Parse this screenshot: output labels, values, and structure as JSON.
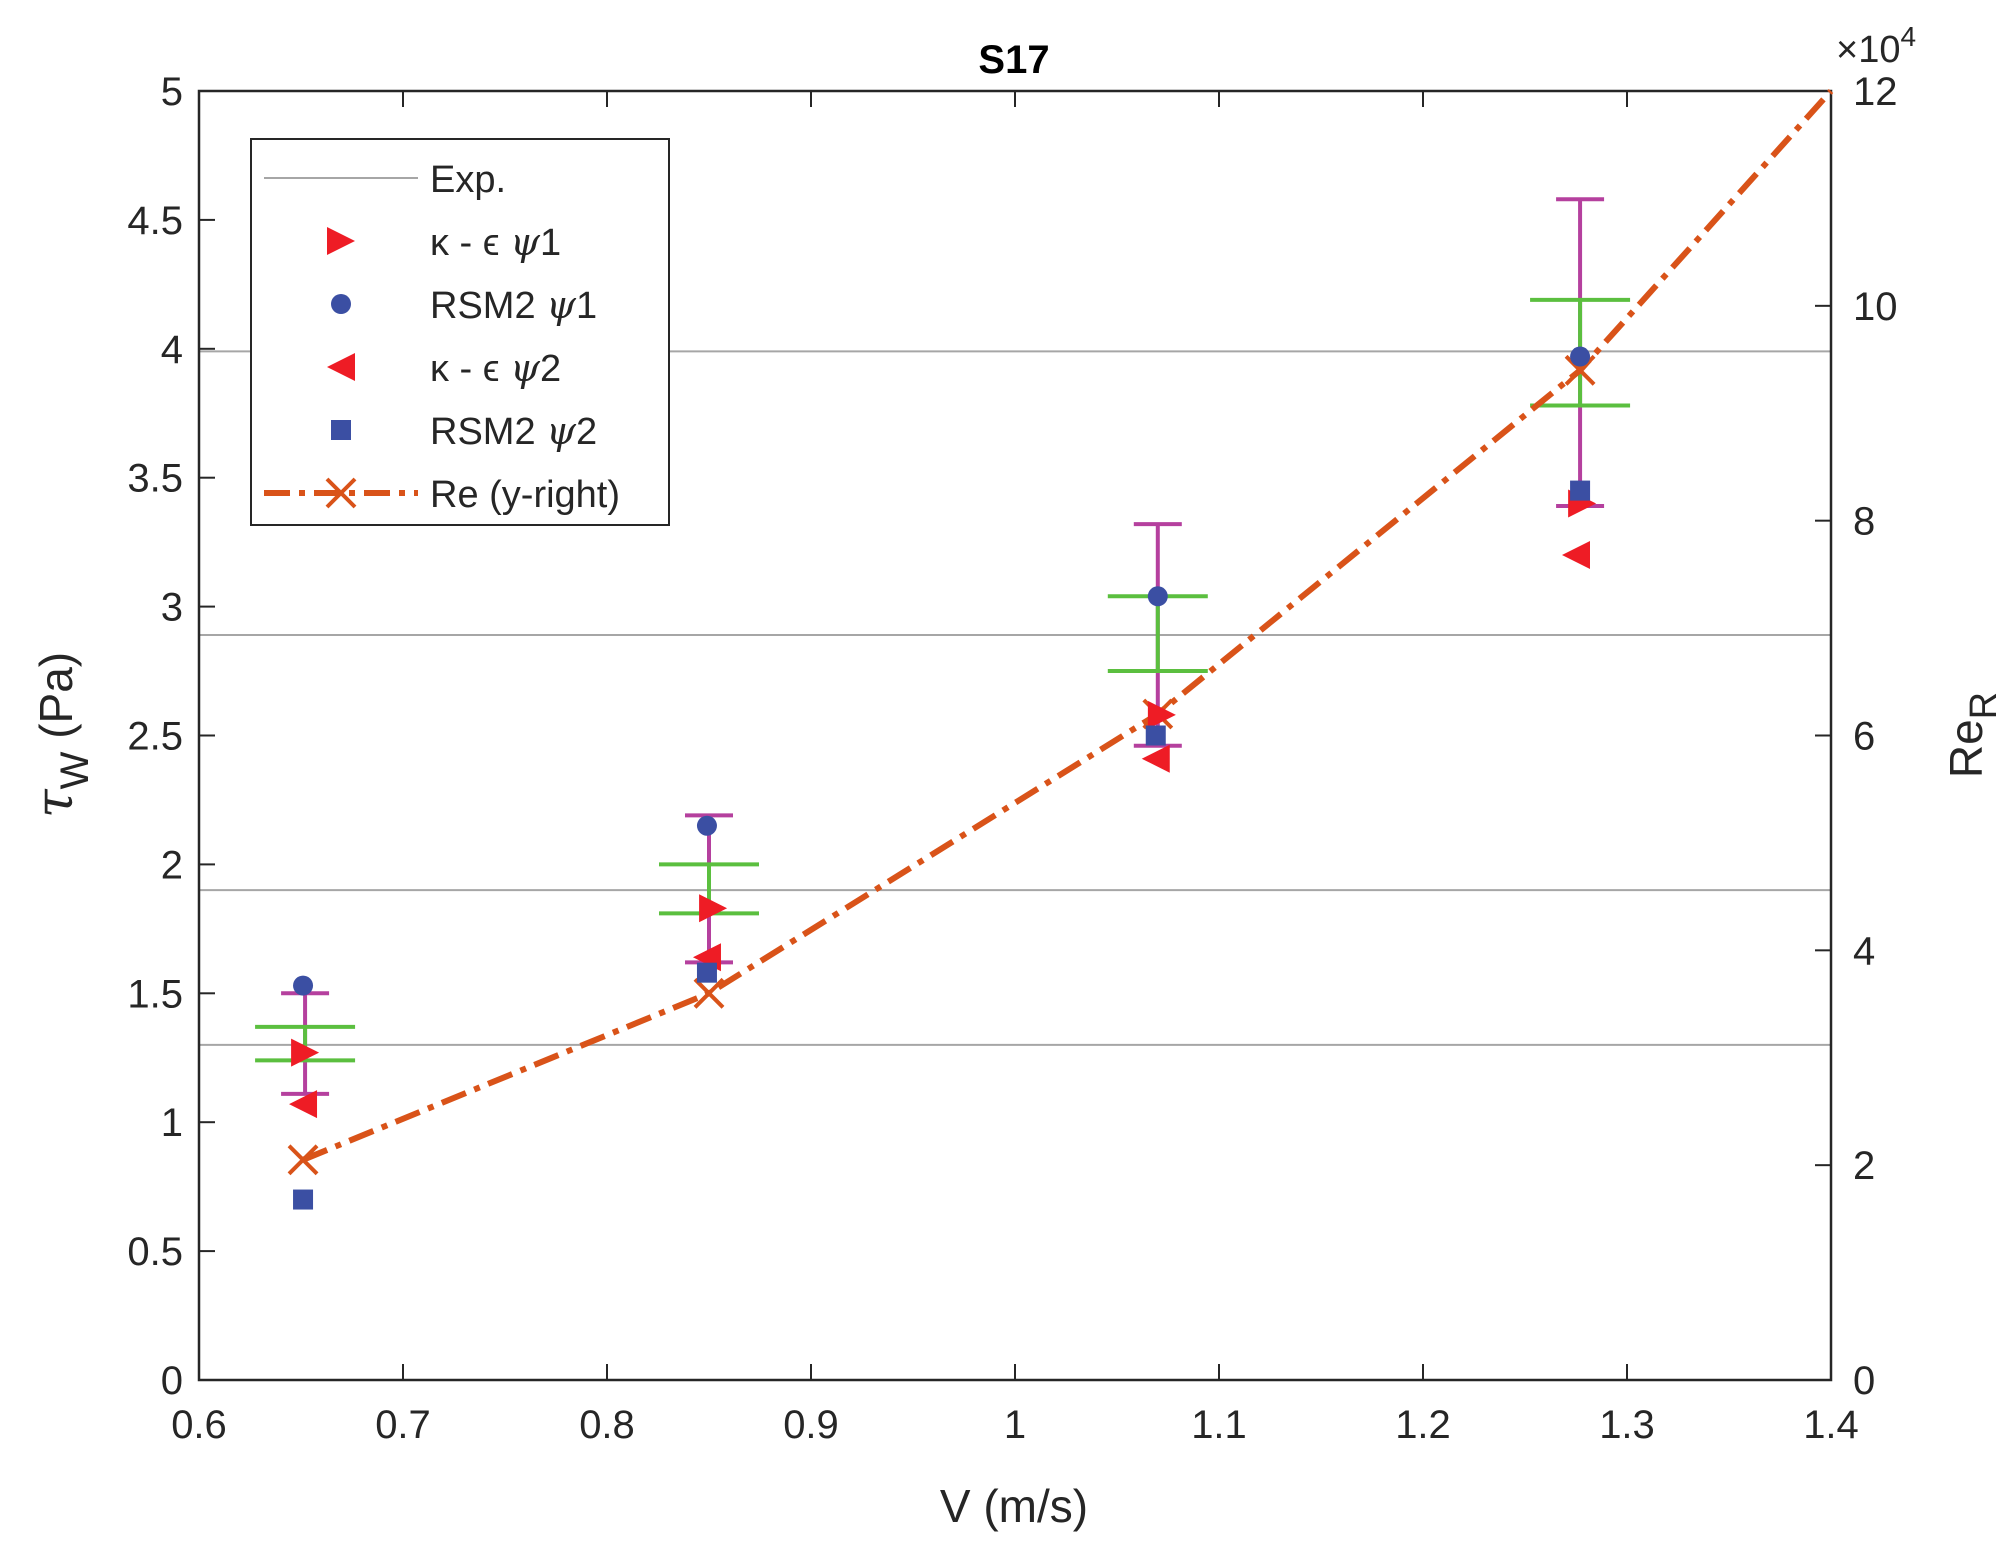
{
  "chart_data": {
    "type": "scatter",
    "title": "S17",
    "xlabel": "V  (m/s)",
    "ylabel_symbol": "τ",
    "ylabel_sub": "W",
    "ylabel_unit": " (Pa)",
    "y2label": "Re",
    "y2label_sub": "R",
    "y2_exponent_base": "×10",
    "y2_exponent_power": "4",
    "xlim": [
      0.6,
      1.4
    ],
    "ylim": [
      0,
      5
    ],
    "y2lim": [
      0,
      12
    ],
    "xticks": [
      0.6,
      0.7,
      0.8,
      0.9,
      1.0,
      1.1,
      1.2,
      1.3,
      1.4
    ],
    "xtick_labels": [
      "0.6",
      "0.7",
      "0.8",
      "0.9",
      "1",
      "1.1",
      "1.2",
      "1.3",
      "1.4"
    ],
    "yticks": [
      0,
      0.5,
      1,
      1.5,
      2,
      2.5,
      3,
      3.5,
      4,
      4.5,
      5
    ],
    "ytick_labels": [
      "0",
      "0.5",
      "1",
      "1.5",
      "2",
      "2.5",
      "3",
      "3.5",
      "4",
      "4.5",
      "5"
    ],
    "y2ticks": [
      0,
      2,
      4,
      6,
      8,
      10,
      12
    ],
    "y2tick_labels": [
      "0",
      "2",
      "4",
      "6",
      "8",
      "10",
      "12"
    ],
    "legend_position": "top-left",
    "series": [
      {
        "name": "Exp.",
        "kind": "hline",
        "values": [
          1.3,
          1.9,
          2.89,
          3.99
        ],
        "color": "#a6a6a6"
      },
      {
        "name": "κ - ϵ ψ1",
        "legend_base": "κ - ϵ ",
        "legend_psi": "ψ",
        "legend_num": "1",
        "marker": "triangle-right",
        "color": "#ee1c25",
        "x": [
          0.652,
          0.852,
          1.072,
          1.278
        ],
        "y": [
          1.27,
          1.83,
          2.58,
          3.4
        ]
      },
      {
        "name": "RSM2 ψ1",
        "legend_base": "RSM2 ",
        "legend_psi": "ψ",
        "legend_num": "1",
        "marker": "circle",
        "color": "#3b4fa3",
        "x": [
          0.651,
          0.849,
          1.07,
          1.277
        ],
        "y": [
          1.53,
          2.15,
          3.04,
          3.97
        ]
      },
      {
        "name": "κ - ϵ ψ2",
        "legend_base": "κ - ϵ ",
        "legend_psi": "ψ",
        "legend_num": "2",
        "marker": "triangle-left",
        "color": "#ee1c25",
        "x": [
          0.651,
          0.849,
          1.069,
          1.275
        ],
        "y": [
          1.07,
          1.64,
          2.41,
          3.2
        ]
      },
      {
        "name": "RSM2 ψ2",
        "legend_base": "RSM2 ",
        "legend_psi": "ψ",
        "legend_num": "2",
        "marker": "square",
        "color": "#3b4fa3",
        "x": [
          0.651,
          0.849,
          1.069,
          1.277
        ],
        "y": [
          0.7,
          1.58,
          2.5,
          3.45
        ]
      },
      {
        "name": "Re (y-right)",
        "axis": "right",
        "marker": "x",
        "line": "dashdot",
        "color": "#d95319",
        "x": [
          0.651,
          0.85,
          1.07,
          1.277,
          1.4
        ],
        "y": [
          2.05,
          3.6,
          6.2,
          9.4,
          12.0
        ]
      }
    ],
    "error_bars": [
      {
        "color": "#b5409e",
        "x": [
          0.652,
          0.85,
          1.07,
          1.277
        ],
        "low": [
          1.11,
          1.62,
          2.46,
          3.39
        ],
        "high": [
          1.5,
          2.19,
          3.32,
          4.58
        ]
      },
      {
        "color": "#5bbf3f",
        "x": [
          0.652,
          0.85,
          1.07,
          1.277
        ],
        "low": [
          1.24,
          1.81,
          2.75,
          3.78
        ],
        "high": [
          1.37,
          2.0,
          3.04,
          4.19
        ]
      }
    ]
  }
}
